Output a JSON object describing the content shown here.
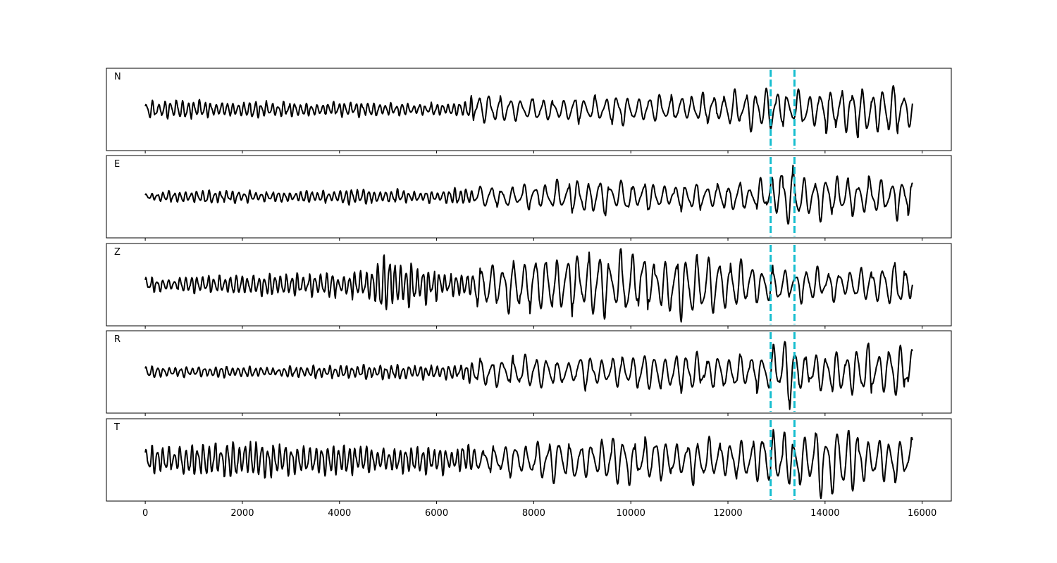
{
  "chart_data": {
    "type": "line",
    "title": "",
    "xlabel": "",
    "ylabel": "",
    "xlim": [
      -800,
      16600
    ],
    "x_ticks": [
      0,
      2000,
      4000,
      6000,
      8000,
      10000,
      12000,
      14000,
      16000
    ],
    "x_tick_labels": [
      "0",
      "2000",
      "4000",
      "6000",
      "8000",
      "10000",
      "12000",
      "14000",
      "16000"
    ],
    "grid": false,
    "legend": "none",
    "markers": [
      {
        "x": 12880,
        "color": "#17becf",
        "style": "dashed"
      },
      {
        "x": 13370,
        "color": "#17becf",
        "style": "dashed"
      }
    ],
    "line_color": "#000000",
    "panels": [
      {
        "label": "N",
        "ylim": [
          -1.0,
          1.0
        ],
        "x_range": [
          0,
          15800
        ],
        "envelope": [
          {
            "x": 0,
            "amp": 0.24
          },
          {
            "x": 1500,
            "amp": 0.22
          },
          {
            "x": 3000,
            "amp": 0.18
          },
          {
            "x": 4500,
            "amp": 0.18
          },
          {
            "x": 6000,
            "amp": 0.16
          },
          {
            "x": 7000,
            "amp": 0.38
          },
          {
            "x": 8500,
            "amp": 0.32
          },
          {
            "x": 9300,
            "amp": 0.4
          },
          {
            "x": 10500,
            "amp": 0.38
          },
          {
            "x": 12000,
            "amp": 0.42
          },
          {
            "x": 12900,
            "amp": 0.55
          },
          {
            "x": 13400,
            "amp": 0.45
          },
          {
            "x": 14400,
            "amp": 0.72
          },
          {
            "x": 15200,
            "amp": 0.68
          },
          {
            "x": 15800,
            "amp": 0.55
          }
        ]
      },
      {
        "label": "E",
        "ylim": [
          -1.0,
          1.0
        ],
        "x_range": [
          0,
          15800
        ],
        "envelope": [
          {
            "x": 0,
            "amp": 0.06
          },
          {
            "x": 800,
            "amp": 0.18
          },
          {
            "x": 3000,
            "amp": 0.14
          },
          {
            "x": 4500,
            "amp": 0.2
          },
          {
            "x": 6000,
            "amp": 0.16
          },
          {
            "x": 7000,
            "amp": 0.28
          },
          {
            "x": 9500,
            "amp": 0.48
          },
          {
            "x": 11000,
            "amp": 0.36
          },
          {
            "x": 12800,
            "amp": 0.42
          },
          {
            "x": 13250,
            "amp": 1.0
          },
          {
            "x": 13600,
            "amp": 0.55
          },
          {
            "x": 15800,
            "amp": 0.55
          }
        ]
      },
      {
        "label": "Z",
        "ylim": [
          -1.0,
          1.0
        ],
        "x_range": [
          0,
          15800
        ],
        "envelope": [
          {
            "x": 0,
            "amp": 0.18
          },
          {
            "x": 2000,
            "amp": 0.26
          },
          {
            "x": 4600,
            "amp": 0.35
          },
          {
            "x": 4800,
            "amp": 0.72
          },
          {
            "x": 6500,
            "amp": 0.26
          },
          {
            "x": 7000,
            "amp": 0.72
          },
          {
            "x": 9000,
            "amp": 0.78
          },
          {
            "x": 11000,
            "amp": 0.84
          },
          {
            "x": 12800,
            "amp": 0.55
          },
          {
            "x": 14000,
            "amp": 0.38
          },
          {
            "x": 15500,
            "amp": 0.62
          },
          {
            "x": 15800,
            "amp": 0.5
          }
        ]
      },
      {
        "label": "R",
        "ylim": [
          -1.0,
          1.0
        ],
        "x_range": [
          0,
          15800
        ],
        "envelope": [
          {
            "x": 0,
            "amp": 0.14
          },
          {
            "x": 3000,
            "amp": 0.14
          },
          {
            "x": 5000,
            "amp": 0.2
          },
          {
            "x": 6500,
            "amp": 0.18
          },
          {
            "x": 7000,
            "amp": 0.4
          },
          {
            "x": 9500,
            "amp": 0.45
          },
          {
            "x": 12800,
            "amp": 0.48
          },
          {
            "x": 13250,
            "amp": 1.0
          },
          {
            "x": 13600,
            "amp": 0.45
          },
          {
            "x": 15000,
            "amp": 0.7
          },
          {
            "x": 15800,
            "amp": 0.55
          }
        ]
      },
      {
        "label": "T",
        "ylim": [
          -1.0,
          1.0
        ],
        "x_range": [
          0,
          15800
        ],
        "envelope": [
          {
            "x": 0,
            "amp": 0.32
          },
          {
            "x": 1500,
            "amp": 0.52
          },
          {
            "x": 4000,
            "amp": 0.38
          },
          {
            "x": 6000,
            "amp": 0.35
          },
          {
            "x": 8000,
            "amp": 0.48
          },
          {
            "x": 9700,
            "amp": 0.62
          },
          {
            "x": 12000,
            "amp": 0.62
          },
          {
            "x": 13300,
            "amp": 0.75
          },
          {
            "x": 14200,
            "amp": 0.88
          },
          {
            "x": 15800,
            "amp": 0.68
          }
        ]
      }
    ]
  }
}
